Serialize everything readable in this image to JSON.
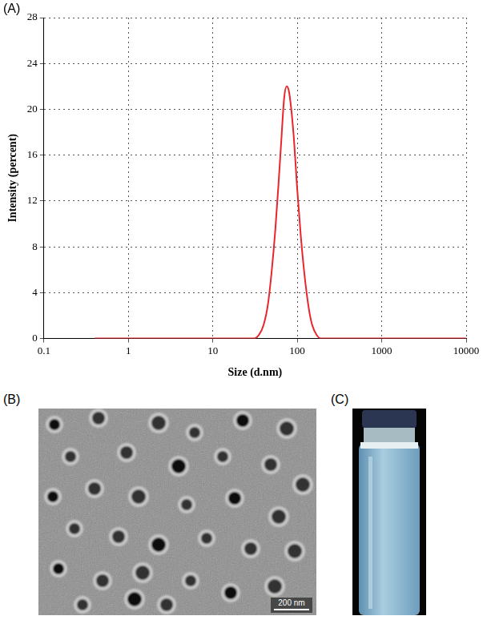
{
  "chart_data": {
    "panel_label": "(A)",
    "type": "line",
    "x_label": "Size (d.nm)",
    "y_label": "Intensity (percent)",
    "x": [
      0.4,
      1,
      10,
      20,
      30,
      35,
      40,
      45,
      50,
      55,
      60,
      65,
      70,
      75,
      80,
      90,
      100,
      110,
      120,
      130,
      140,
      150,
      170,
      190,
      300,
      1000,
      10000
    ],
    "values": [
      0,
      0,
      0,
      0,
      0,
      0.3,
      1.2,
      3,
      6,
      9.5,
      13.5,
      17.5,
      21,
      22,
      21.5,
      18,
      13,
      9,
      6,
      3.8,
      2.2,
      1.2,
      0.3,
      0,
      0,
      0,
      0
    ],
    "color": "#e8262b",
    "line_style": "solid",
    "log": "x",
    "xlim": [
      0.1,
      10000
    ],
    "xticks": [
      0.1,
      1,
      10,
      100,
      1000,
      10000
    ],
    "ylim": [
      0,
      28
    ],
    "yticks": [
      0,
      4,
      8,
      12,
      16,
      20,
      24,
      28
    ],
    "grid": true
  },
  "images": [
    {
      "label": "(B)",
      "scale_bar": "200 nm"
    },
    {
      "label": "(C)"
    }
  ]
}
